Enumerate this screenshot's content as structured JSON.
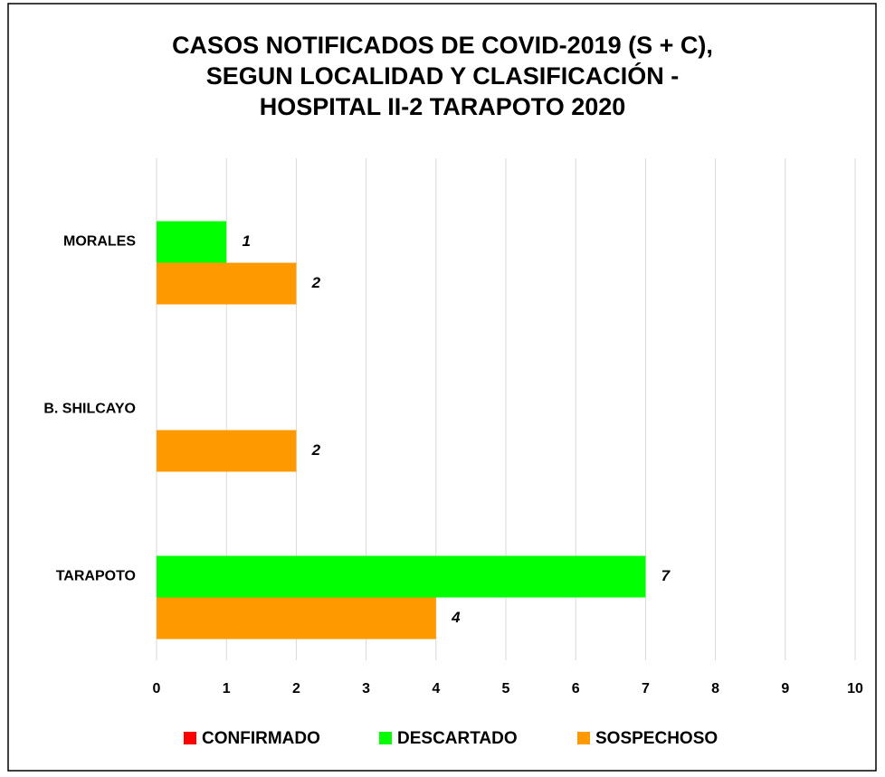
{
  "chart_data": {
    "type": "barh",
    "title": [
      "CASOS NOTIFICADOS DE COVID-2019 (S + C),",
      "SEGUN LOCALIDAD Y CLASIFICACIÓN -",
      "HOSPITAL II-2 TARAPOTO 2020"
    ],
    "categories": [
      "MORALES",
      "B. SHILCAYO",
      "TARAPOTO"
    ],
    "series": [
      {
        "name": "CONFIRMADO",
        "color": "#ff0000",
        "values": [
          null,
          null,
          null
        ]
      },
      {
        "name": "DESCARTADO",
        "color": "#00ff00",
        "values": [
          1,
          null,
          7
        ]
      },
      {
        "name": "SOSPECHOSO",
        "color": "#ff9900",
        "values": [
          2,
          2,
          4
        ]
      }
    ],
    "xlim": [
      0,
      10
    ],
    "xticks": [
      0,
      1,
      2,
      3,
      4,
      5,
      6,
      7,
      8,
      9,
      10
    ],
    "grid": true,
    "legend": "bottom"
  }
}
